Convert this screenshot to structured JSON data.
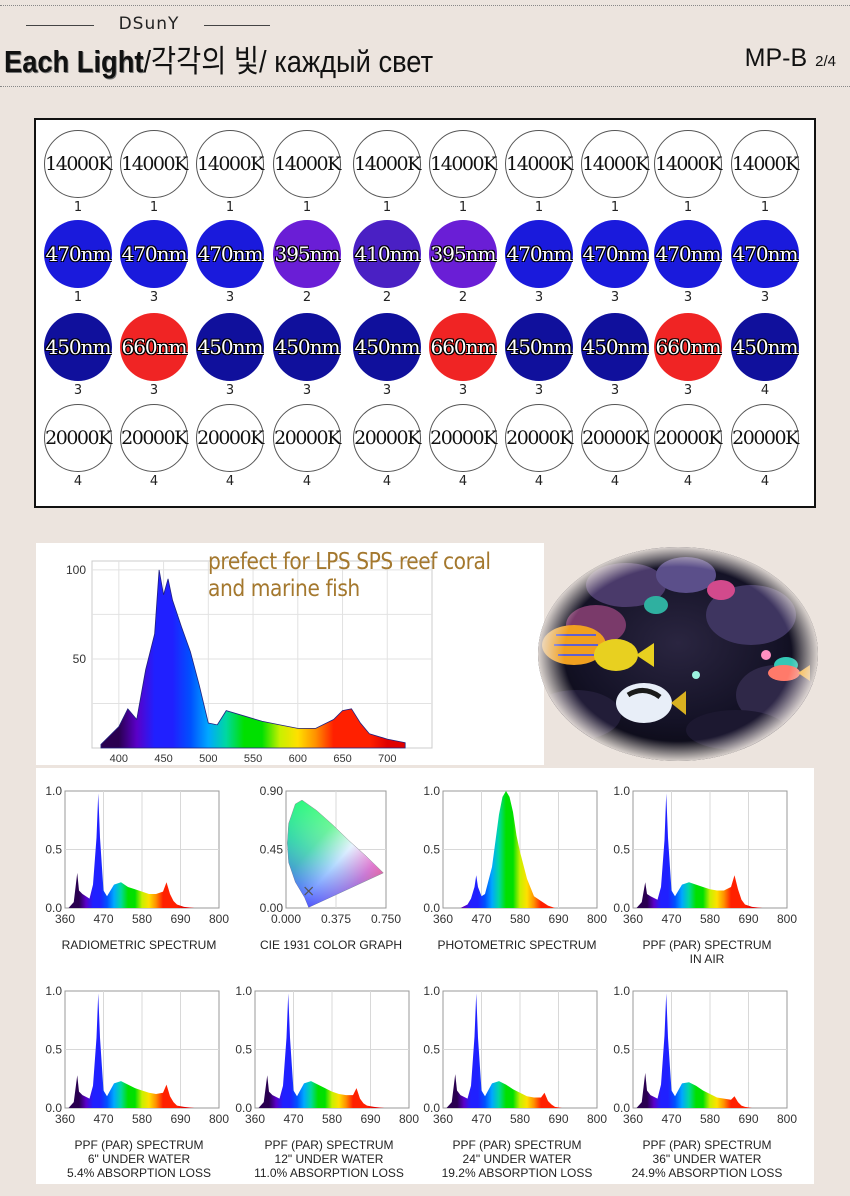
{
  "header": {
    "brand": "DSunY",
    "title_en": "Each Light",
    "title_ko": "각각의 빛",
    "title_ru": "каждый свет",
    "separator": "/",
    "model": "MP-B",
    "page": "2/4"
  },
  "led_grid": {
    "rows": [
      [
        {
          "label": "14000K",
          "count": "1",
          "color": "#ffffff"
        },
        {
          "label": "14000K",
          "count": "1",
          "color": "#ffffff"
        },
        {
          "label": "14000K",
          "count": "1",
          "color": "#ffffff"
        },
        {
          "label": "14000K",
          "count": "1",
          "color": "#ffffff"
        },
        {
          "label": "14000K",
          "count": "1",
          "color": "#ffffff"
        },
        {
          "label": "14000K",
          "count": "1",
          "color": "#ffffff"
        },
        {
          "label": "14000K",
          "count": "1",
          "color": "#ffffff"
        },
        {
          "label": "14000K",
          "count": "1",
          "color": "#ffffff"
        },
        {
          "label": "14000K",
          "count": "1",
          "color": "#ffffff"
        },
        {
          "label": "14000K",
          "count": "1",
          "color": "#ffffff"
        }
      ],
      [
        {
          "label": "470nm",
          "count": "1",
          "color": "#1a1adc"
        },
        {
          "label": "470nm",
          "count": "3",
          "color": "#1a1adc"
        },
        {
          "label": "470nm",
          "count": "3",
          "color": "#1a1adc"
        },
        {
          "label": "395nm",
          "count": "2",
          "color": "#6a1ed6"
        },
        {
          "label": "410nm",
          "count": "2",
          "color": "#4a20c4"
        },
        {
          "label": "395nm",
          "count": "2",
          "color": "#6a1ed6"
        },
        {
          "label": "470nm",
          "count": "3",
          "color": "#1a1adc"
        },
        {
          "label": "470nm",
          "count": "3",
          "color": "#1a1adc"
        },
        {
          "label": "470nm",
          "count": "3",
          "color": "#1a1adc"
        },
        {
          "label": "470nm",
          "count": "3",
          "color": "#1a1adc"
        }
      ],
      [
        {
          "label": "450nm",
          "count": "3",
          "color": "#10109c"
        },
        {
          "label": "660nm",
          "count": "3",
          "color": "#f02424"
        },
        {
          "label": "450nm",
          "count": "3",
          "color": "#10109c"
        },
        {
          "label": "450nm",
          "count": "3",
          "color": "#10109c"
        },
        {
          "label": "450nm",
          "count": "3",
          "color": "#10109c"
        },
        {
          "label": "660nm",
          "count": "3",
          "color": "#f02424"
        },
        {
          "label": "450nm",
          "count": "3",
          "color": "#10109c"
        },
        {
          "label": "450nm",
          "count": "3",
          "color": "#10109c"
        },
        {
          "label": "660nm",
          "count": "3",
          "color": "#f02424"
        },
        {
          "label": "450nm",
          "count": "4",
          "color": "#10109c"
        }
      ],
      [
        {
          "label": "20000K",
          "count": "4",
          "color": "#ffffff"
        },
        {
          "label": "20000K",
          "count": "4",
          "color": "#ffffff"
        },
        {
          "label": "20000K",
          "count": "4",
          "color": "#ffffff"
        },
        {
          "label": "20000K",
          "count": "4",
          "color": "#ffffff"
        },
        {
          "label": "20000K",
          "count": "4",
          "color": "#ffffff"
        },
        {
          "label": "20000K",
          "count": "4",
          "color": "#ffffff"
        },
        {
          "label": "20000K",
          "count": "4",
          "color": "#ffffff"
        },
        {
          "label": "20000K",
          "count": "4",
          "color": "#ffffff"
        },
        {
          "label": "20000K",
          "count": "4",
          "color": "#ffffff"
        },
        {
          "label": "20000K",
          "count": "4",
          "color": "#ffffff"
        }
      ]
    ]
  },
  "spectrum_caption": {
    "line1": "prefect for LPS SPS reef coral",
    "line2": "and marine fish",
    "color": "#a4782e"
  },
  "chart_data": [
    {
      "type": "area",
      "title": "",
      "x_ticks": [
        "400",
        "450",
        "500",
        "550",
        "600",
        "650",
        "700"
      ],
      "y_ticks": [
        "100",
        "50"
      ],
      "xlim": [
        370,
        750
      ],
      "ylim": [
        0,
        105
      ],
      "x": [
        380,
        400,
        410,
        420,
        430,
        440,
        445,
        450,
        455,
        460,
        470,
        480,
        490,
        500,
        510,
        520,
        540,
        560,
        580,
        600,
        620,
        640,
        650,
        660,
        670,
        680,
        700,
        720
      ],
      "y": [
        2,
        12,
        22,
        16,
        44,
        64,
        100,
        86,
        95,
        83,
        68,
        54,
        35,
        14,
        13,
        21,
        18,
        15,
        13,
        11,
        11,
        16,
        21,
        22,
        14,
        8,
        5,
        3
      ]
    },
    {
      "type": "area",
      "title": "RADIOMETRIC SPECTRUM",
      "x_ticks": [
        "360",
        "470",
        "580",
        "690",
        "800"
      ],
      "y_ticks": [
        "1.0",
        "0.5",
        "0.0"
      ],
      "xlim": [
        360,
        800
      ],
      "ylim": [
        0,
        1
      ],
      "x": [
        370,
        385,
        395,
        400,
        410,
        430,
        440,
        450,
        455,
        460,
        470,
        480,
        500,
        520,
        540,
        560,
        580,
        600,
        620,
        640,
        650,
        660,
        670,
        680,
        700,
        730
      ],
      "y": [
        0,
        0.05,
        0.3,
        0.15,
        0.12,
        0.08,
        0.2,
        0.6,
        0.98,
        0.6,
        0.15,
        0.1,
        0.2,
        0.22,
        0.18,
        0.16,
        0.14,
        0.12,
        0.12,
        0.14,
        0.22,
        0.12,
        0.06,
        0.03,
        0.01,
        0
      ]
    },
    {
      "type": "scatter",
      "title": "CIE 1931 COLOR GRAPH",
      "x_ticks": [
        "0.000",
        "0.375",
        "0.750"
      ],
      "y_ticks": [
        "0.90",
        "0.45",
        "0.00"
      ],
      "xlim": [
        0,
        0.75
      ],
      "ylim": [
        0,
        0.9
      ],
      "point": {
        "x": 0.17,
        "y": 0.13
      }
    },
    {
      "type": "area",
      "title": "PHOTOMETRIC SPECTRUM",
      "x_ticks": [
        "360",
        "470",
        "580",
        "690",
        "800"
      ],
      "y_ticks": [
        "1.0",
        "0.5",
        "0.0"
      ],
      "xlim": [
        360,
        800
      ],
      "ylim": [
        0,
        1
      ],
      "x": [
        410,
        430,
        440,
        450,
        455,
        460,
        470,
        480,
        500,
        520,
        530,
        540,
        550,
        560,
        570,
        580,
        600,
        620,
        640,
        660,
        680
      ],
      "y": [
        0,
        0.03,
        0.08,
        0.18,
        0.28,
        0.18,
        0.1,
        0.12,
        0.35,
        0.8,
        0.95,
        1.0,
        0.95,
        0.82,
        0.62,
        0.48,
        0.25,
        0.1,
        0.06,
        0.02,
        0
      ]
    },
    {
      "type": "area",
      "title": "PPF (PAR) SPECTRUM",
      "subtitle": "IN AIR",
      "x_ticks": [
        "360",
        "470",
        "580",
        "690",
        "800"
      ],
      "y_ticks": [
        "1.0",
        "0.5",
        "0.0"
      ],
      "xlim": [
        360,
        800
      ],
      "ylim": [
        0,
        1
      ],
      "x": [
        370,
        385,
        395,
        400,
        410,
        430,
        440,
        450,
        455,
        460,
        470,
        480,
        500,
        520,
        540,
        560,
        580,
        600,
        620,
        640,
        650,
        660,
        670,
        680,
        700,
        730
      ],
      "y": [
        0,
        0.05,
        0.22,
        0.12,
        0.1,
        0.07,
        0.18,
        0.58,
        0.98,
        0.6,
        0.15,
        0.1,
        0.2,
        0.22,
        0.2,
        0.18,
        0.16,
        0.15,
        0.15,
        0.18,
        0.28,
        0.16,
        0.07,
        0.03,
        0.01,
        0
      ]
    },
    {
      "type": "area",
      "title": "PPF (PAR) SPECTRUM",
      "subtitle": "6\" UNDER WATER",
      "subtitle2": "5.4% ABSORPTION LOSS",
      "x_ticks": [
        "360",
        "470",
        "580",
        "690",
        "800"
      ],
      "y_ticks": [
        "1.0",
        "0.5",
        "0.0"
      ],
      "xlim": [
        360,
        800
      ],
      "ylim": [
        0,
        1
      ],
      "x": [
        370,
        385,
        395,
        400,
        410,
        430,
        440,
        450,
        455,
        460,
        470,
        480,
        500,
        520,
        540,
        560,
        580,
        600,
        620,
        640,
        650,
        660,
        670,
        680,
        700,
        730
      ],
      "y": [
        0,
        0.05,
        0.28,
        0.14,
        0.11,
        0.08,
        0.19,
        0.6,
        0.98,
        0.6,
        0.15,
        0.1,
        0.21,
        0.23,
        0.2,
        0.17,
        0.15,
        0.13,
        0.12,
        0.13,
        0.2,
        0.1,
        0.05,
        0.02,
        0.01,
        0
      ]
    },
    {
      "type": "area",
      "title": "PPF (PAR) SPECTRUM",
      "subtitle": "12\" UNDER WATER",
      "subtitle2": "11.0% ABSORPTION LOSS",
      "x_ticks": [
        "360",
        "470",
        "580",
        "690",
        "800"
      ],
      "y_ticks": [
        "1.0",
        "0.5",
        "0.0"
      ],
      "xlim": [
        360,
        800
      ],
      "ylim": [
        0,
        1
      ],
      "x": [
        370,
        385,
        395,
        400,
        410,
        430,
        440,
        450,
        455,
        460,
        470,
        480,
        500,
        520,
        540,
        560,
        580,
        600,
        620,
        640,
        650,
        660,
        670,
        680,
        700,
        730
      ],
      "y": [
        0,
        0.05,
        0.28,
        0.14,
        0.11,
        0.08,
        0.19,
        0.6,
        0.98,
        0.6,
        0.15,
        0.1,
        0.21,
        0.23,
        0.2,
        0.17,
        0.14,
        0.12,
        0.11,
        0.11,
        0.17,
        0.08,
        0.04,
        0.02,
        0.01,
        0
      ]
    },
    {
      "type": "area",
      "title": "PPF (PAR) SPECTRUM",
      "subtitle": "24\" UNDER WATER",
      "subtitle2": "19.2% ABSORPTION LOSS",
      "x_ticks": [
        "360",
        "470",
        "580",
        "690",
        "800"
      ],
      "y_ticks": [
        "1.0",
        "0.5",
        "0.0"
      ],
      "xlim": [
        360,
        800
      ],
      "ylim": [
        0,
        1
      ],
      "x": [
        370,
        385,
        395,
        400,
        410,
        430,
        440,
        450,
        455,
        460,
        470,
        480,
        500,
        520,
        540,
        560,
        580,
        600,
        620,
        640,
        650,
        660,
        670,
        680,
        700,
        730
      ],
      "y": [
        0,
        0.05,
        0.29,
        0.15,
        0.11,
        0.08,
        0.19,
        0.61,
        0.98,
        0.6,
        0.15,
        0.1,
        0.21,
        0.23,
        0.2,
        0.16,
        0.13,
        0.1,
        0.09,
        0.09,
        0.13,
        0.06,
        0.03,
        0.01,
        0,
        0
      ]
    },
    {
      "type": "area",
      "title": "PPF (PAR) SPECTRUM",
      "subtitle": "36\" UNDER WATER",
      "subtitle2": "24.9% ABSORPTION LOSS",
      "x_ticks": [
        "360",
        "470",
        "580",
        "690",
        "800"
      ],
      "y_ticks": [
        "1.0",
        "0.5",
        "0.0"
      ],
      "xlim": [
        360,
        800
      ],
      "ylim": [
        0,
        1
      ],
      "x": [
        370,
        385,
        395,
        400,
        410,
        430,
        440,
        450,
        455,
        460,
        470,
        480,
        500,
        520,
        540,
        560,
        580,
        600,
        620,
        640,
        650,
        660,
        670,
        680,
        700,
        730
      ],
      "y": [
        0,
        0.05,
        0.3,
        0.15,
        0.11,
        0.08,
        0.2,
        0.62,
        0.98,
        0.6,
        0.15,
        0.1,
        0.21,
        0.22,
        0.19,
        0.15,
        0.12,
        0.09,
        0.08,
        0.07,
        0.1,
        0.05,
        0.02,
        0.01,
        0,
        0
      ]
    }
  ]
}
